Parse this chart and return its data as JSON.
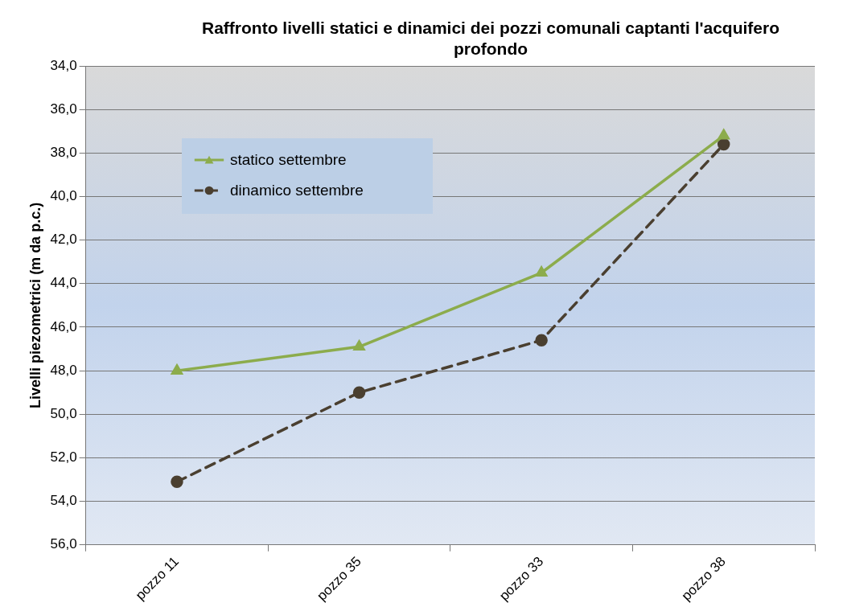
{
  "chart_data": {
    "type": "line",
    "title": "Raffronto livelli statici e dinamici dei pozzi comunali captanti l'acquifero profondo",
    "ylabel": "Livelli piezometrici (m da p.c.)",
    "categories": [
      "pozzo 11",
      "pozzo 35",
      "pozzo 33",
      "pozzo 38"
    ],
    "series": [
      {
        "name": "statico settembre",
        "color": "#8cac4c",
        "values": [
          48.0,
          46.9,
          43.5,
          37.2
        ],
        "marker": "triangle",
        "line_style": "solid"
      },
      {
        "name": "dinamico settembre",
        "color": "#4a3f30",
        "values": [
          53.1,
          49.0,
          46.6,
          37.6
        ],
        "marker": "circle",
        "line_style": "dashed"
      }
    ],
    "ylim": [
      56,
      34
    ],
    "yticks": [
      {
        "value": 34,
        "label": "34,0"
      },
      {
        "value": 36,
        "label": "36,0"
      },
      {
        "value": 38,
        "label": "38,0"
      },
      {
        "value": 40,
        "label": "40,0"
      },
      {
        "value": 42,
        "label": "42,0"
      },
      {
        "value": 44,
        "label": "44,0"
      },
      {
        "value": 46,
        "label": "46,0"
      },
      {
        "value": 48,
        "label": "48,0"
      },
      {
        "value": 50,
        "label": "50,0"
      },
      {
        "value": 52,
        "label": "52,0"
      },
      {
        "value": 54,
        "label": "54,0"
      },
      {
        "value": 56,
        "label": "56,0"
      }
    ],
    "grid": "y",
    "legend": "top left"
  }
}
